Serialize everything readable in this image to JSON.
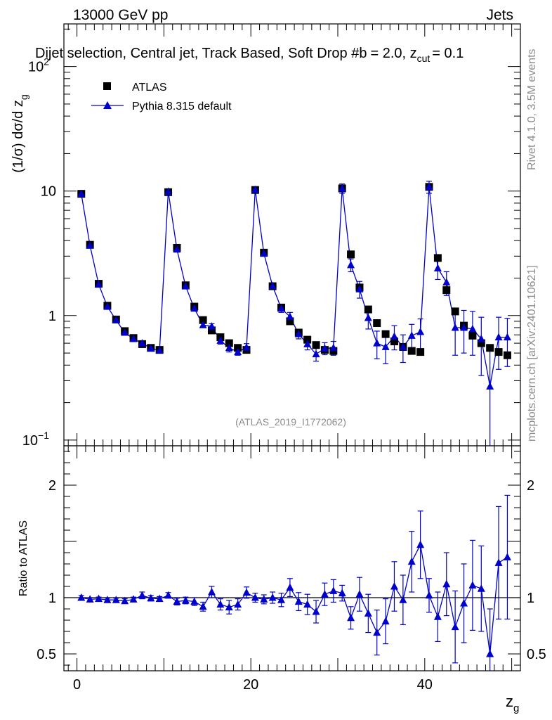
{
  "header": {
    "left": "13000 GeV pp",
    "right": "Jets",
    "title": "Dijet selection, Central jet, Track Based, Soft Drop #b = 2.0, z_cut = 0.1",
    "title_main": "Dijet selection, Central jet, Track Based, Soft Drop #b",
    "title_tail": "= 2.0, z",
    "title_sub": "cut",
    "title_end": "= 0.1"
  },
  "side_text": {
    "rivet": "Rivet 4.1.0,  3.5M events",
    "mcplots": "mcplots.cern.ch [arXiv:2401.10621]"
  },
  "watermark": "(ATLAS_2019_I1772062)",
  "colors": {
    "data": "#000000",
    "mc": "#0000cc",
    "frame": "#000000",
    "gray": "#8c8c8c"
  },
  "chart_data": [
    {
      "type": "scatter",
      "name": "main",
      "ylabel": "(1/σ) dσ/d z_g",
      "ylabel_main": "(1/σ) dσ/d z",
      "ylabel_sub": "g",
      "yscale": "log",
      "ylim": [
        0.09,
        220
      ],
      "xlim": [
        -1.5,
        51
      ],
      "yticks": [
        {
          "v": 0.1,
          "label": "10",
          "exp": "−1"
        },
        {
          "v": 1,
          "label": "1",
          "exp": ""
        },
        {
          "v": 10,
          "label": "10",
          "exp": ""
        },
        {
          "v": 100,
          "label": "10",
          "exp": "2"
        }
      ],
      "legend": [
        {
          "label": "ATLAS",
          "series": "data"
        },
        {
          "label": "Pythia 8.315 default",
          "series": "mc"
        }
      ],
      "legend_position": "top-left",
      "x": [
        0.5,
        1.5,
        2.5,
        3.5,
        4.5,
        5.5,
        6.5,
        7.5,
        8.5,
        9.5,
        10.5,
        11.5,
        12.5,
        13.5,
        14.5,
        15.5,
        16.5,
        17.5,
        18.5,
        19.5,
        20.5,
        21.5,
        22.5,
        23.5,
        24.5,
        25.5,
        26.5,
        27.5,
        28.5,
        29.5,
        30.5,
        31.5,
        32.5,
        33.5,
        34.5,
        35.5,
        36.5,
        37.5,
        38.5,
        39.5,
        40.5,
        41.5,
        42.5,
        43.5,
        44.5,
        45.5,
        46.5,
        47.5,
        48.5,
        49.5
      ],
      "series": [
        {
          "name": "ATLAS",
          "values": [
            9.5,
            3.7,
            1.8,
            1.2,
            0.93,
            0.75,
            0.66,
            0.59,
            0.55,
            0.53,
            9.8,
            3.5,
            1.75,
            1.18,
            0.92,
            0.76,
            0.67,
            0.6,
            0.55,
            0.53,
            10.2,
            3.2,
            1.72,
            1.16,
            0.9,
            0.73,
            0.64,
            0.58,
            0.53,
            0.52,
            10.5,
            3.1,
            1.68,
            1.12,
            0.87,
            0.71,
            0.62,
            0.56,
            0.52,
            0.51,
            10.8,
            2.9,
            1.6,
            1.08,
            0.83,
            0.69,
            0.6,
            0.55,
            0.51,
            0.48
          ]
        },
        {
          "name": "Pythia 8.315 default",
          "values": [
            9.5,
            3.65,
            1.78,
            1.18,
            0.92,
            0.73,
            0.65,
            0.6,
            0.545,
            0.525,
            9.9,
            3.4,
            1.72,
            1.14,
            0.84,
            0.82,
            0.63,
            0.55,
            0.51,
            0.555,
            10.25,
            3.15,
            1.73,
            1.14,
            0.98,
            0.71,
            0.59,
            0.49,
            0.545,
            0.55,
            10.5,
            2.55,
            1.63,
            0.96,
            0.6,
            0.56,
            0.68,
            0.56,
            0.69,
            0.74,
            10.8,
            2.4,
            1.85,
            0.8,
            0.8,
            0.78,
            0.65,
            0.27,
            0.67,
            0.67
          ],
          "errors": [
            0.15,
            0.08,
            0.04,
            0.03,
            0.02,
            0.02,
            0.02,
            0.02,
            0.02,
            0.02,
            0.35,
            0.12,
            0.06,
            0.05,
            0.04,
            0.04,
            0.04,
            0.04,
            0.03,
            0.04,
            0.5,
            0.15,
            0.1,
            0.08,
            0.08,
            0.06,
            0.06,
            0.06,
            0.06,
            0.07,
            0.9,
            0.3,
            0.25,
            0.18,
            0.15,
            0.15,
            0.15,
            0.14,
            0.16,
            0.2,
            1.2,
            0.45,
            0.4,
            0.32,
            0.3,
            0.3,
            0.32,
            0.3,
            0.3,
            0.28
          ]
        }
      ]
    },
    {
      "type": "scatter",
      "name": "ratio",
      "ylabel": "Ratio to ATLAS",
      "xlabel": "z_g",
      "xlabel_main": "z",
      "xlabel_sub": "g",
      "ylim": [
        0.35,
        2.35
      ],
      "xlim": [
        -1.5,
        51
      ],
      "xticks": [
        {
          "v": 0,
          "label": "0"
        },
        {
          "v": 20,
          "label": "20"
        },
        {
          "v": 40,
          "label": "40"
        }
      ],
      "yticks": [
        {
          "v": 0.5,
          "label": "0.5"
        },
        {
          "v": 1,
          "label": "1"
        },
        {
          "v": 2,
          "label": "2"
        }
      ],
      "reference_line": 1,
      "x": [
        0.5,
        1.5,
        2.5,
        3.5,
        4.5,
        5.5,
        6.5,
        7.5,
        8.5,
        9.5,
        10.5,
        11.5,
        12.5,
        13.5,
        14.5,
        15.5,
        16.5,
        17.5,
        18.5,
        19.5,
        20.5,
        21.5,
        22.5,
        23.5,
        24.5,
        25.5,
        26.5,
        27.5,
        28.5,
        29.5,
        30.5,
        31.5,
        32.5,
        33.5,
        34.5,
        35.5,
        36.5,
        37.5,
        38.5,
        39.5,
        40.5,
        41.5,
        42.5,
        43.5,
        44.5,
        45.5,
        46.5,
        47.5,
        48.5,
        49.5
      ],
      "series": [
        {
          "name": "Pythia 8.315 default / ATLAS",
          "values": [
            1.0,
            0.985,
            0.99,
            0.98,
            0.98,
            0.97,
            0.985,
            1.02,
            0.995,
            0.99,
            1.02,
            0.965,
            0.975,
            0.965,
            0.92,
            1.05,
            0.94,
            0.915,
            0.94,
            1.045,
            1.0,
            0.985,
            1.0,
            0.98,
            1.09,
            0.965,
            0.94,
            0.875,
            1.03,
            1.06,
            1.04,
            0.82,
            1.03,
            0.86,
            0.69,
            0.79,
            1.1,
            0.98,
            1.32,
            1.47,
            1.02,
            0.83,
            1.12,
            0.74,
            0.95,
            1.11,
            1.08,
            0.5,
            1.31,
            1.36
          ],
          "errors": [
            0.02,
            0.015,
            0.015,
            0.015,
            0.015,
            0.02,
            0.02,
            0.03,
            0.025,
            0.02,
            0.025,
            0.03,
            0.03,
            0.035,
            0.04,
            0.05,
            0.05,
            0.06,
            0.05,
            0.05,
            0.04,
            0.04,
            0.05,
            0.06,
            0.08,
            0.08,
            0.09,
            0.1,
            0.1,
            0.1,
            0.07,
            0.1,
            0.15,
            0.17,
            0.2,
            0.2,
            0.22,
            0.22,
            0.27,
            0.3,
            0.15,
            0.22,
            0.28,
            0.32,
            0.35,
            0.4,
            0.38,
            0.4,
            0.5,
            0.55
          ]
        }
      ]
    }
  ]
}
